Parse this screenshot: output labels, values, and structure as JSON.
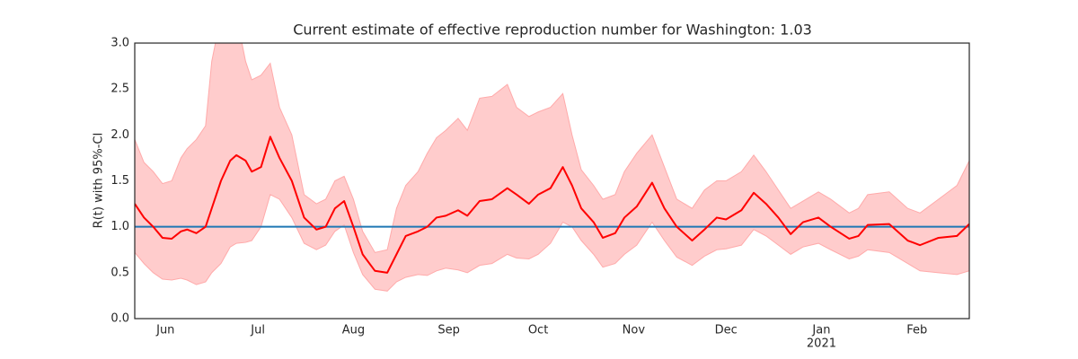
{
  "chart_data": {
    "type": "band-line",
    "title": "Current estimate of effective reproduction number for Washington: 1.03",
    "ylabel": "R(t) with 95%-CI",
    "x": [
      0,
      3,
      6,
      9,
      12,
      15,
      17,
      20,
      23,
      25,
      28,
      31,
      33,
      36,
      38,
      41,
      44,
      47,
      51,
      55,
      59,
      62,
      65,
      68,
      71,
      74,
      78,
      82,
      85,
      88,
      92,
      95,
      98,
      101,
      105,
      108,
      112,
      116,
      121,
      124,
      128,
      131,
      135,
      139,
      142,
      145,
      149,
      152,
      156,
      159,
      163,
      168,
      172,
      176,
      181,
      185,
      189,
      192,
      197,
      201,
      205,
      209,
      213,
      217,
      222,
      226,
      232,
      235,
      238,
      245,
      251,
      255,
      261,
      267,
      271
    ],
    "line": {
      "color": "#ff0000",
      "values": [
        1.25,
        1.1,
        1.0,
        0.88,
        0.87,
        0.95,
        0.97,
        0.93,
        1.0,
        1.2,
        1.5,
        1.72,
        1.78,
        1.72,
        1.6,
        1.65,
        1.98,
        1.75,
        1.5,
        1.1,
        0.97,
        1.0,
        1.2,
        1.28,
        1.0,
        0.7,
        0.52,
        0.5,
        0.7,
        0.9,
        0.95,
        1.0,
        1.1,
        1.12,
        1.18,
        1.12,
        1.28,
        1.3,
        1.42,
        1.35,
        1.25,
        1.35,
        1.42,
        1.65,
        1.45,
        1.2,
        1.05,
        0.88,
        0.93,
        1.1,
        1.22,
        1.48,
        1.2,
        1.0,
        0.85,
        0.97,
        1.1,
        1.08,
        1.18,
        1.37,
        1.25,
        1.1,
        0.92,
        1.05,
        1.1,
        1.0,
        0.87,
        0.9,
        1.02,
        1.03,
        0.85,
        0.8,
        0.88,
        0.9,
        1.03
      ]
    },
    "band": {
      "color": "#ffcccc",
      "edge_color": "#ffaaaa",
      "upper": [
        1.95,
        1.7,
        1.6,
        1.47,
        1.5,
        1.75,
        1.85,
        1.95,
        2.1,
        2.8,
        3.3,
        3.5,
        3.3,
        2.8,
        2.6,
        2.65,
        2.78,
        2.3,
        2.0,
        1.35,
        1.25,
        1.3,
        1.5,
        1.55,
        1.3,
        0.95,
        0.72,
        0.75,
        1.2,
        1.45,
        1.6,
        1.8,
        1.97,
        2.05,
        2.18,
        2.05,
        2.4,
        2.42,
        2.55,
        2.3,
        2.2,
        2.25,
        2.3,
        2.45,
        2.0,
        1.62,
        1.45,
        1.3,
        1.35,
        1.6,
        1.8,
        2.0,
        1.65,
        1.3,
        1.2,
        1.4,
        1.5,
        1.5,
        1.6,
        1.78,
        1.6,
        1.4,
        1.2,
        1.28,
        1.38,
        1.3,
        1.15,
        1.2,
        1.35,
        1.38,
        1.2,
        1.15,
        1.3,
        1.45,
        1.72
      ],
      "lower": [
        0.72,
        0.6,
        0.5,
        0.43,
        0.42,
        0.44,
        0.42,
        0.37,
        0.4,
        0.5,
        0.6,
        0.78,
        0.82,
        0.83,
        0.85,
        1.0,
        1.35,
        1.3,
        1.1,
        0.82,
        0.75,
        0.8,
        0.95,
        1.02,
        0.72,
        0.48,
        0.32,
        0.3,
        0.4,
        0.45,
        0.48,
        0.47,
        0.52,
        0.55,
        0.53,
        0.5,
        0.58,
        0.6,
        0.7,
        0.66,
        0.65,
        0.7,
        0.82,
        1.05,
        1.0,
        0.85,
        0.7,
        0.56,
        0.6,
        0.7,
        0.8,
        1.05,
        0.85,
        0.67,
        0.58,
        0.68,
        0.75,
        0.76,
        0.8,
        0.97,
        0.9,
        0.8,
        0.7,
        0.78,
        0.82,
        0.75,
        0.65,
        0.68,
        0.75,
        0.72,
        0.6,
        0.52,
        0.5,
        0.48,
        0.52
      ]
    },
    "hline": {
      "value": 1,
      "color": "#1f77b4"
    },
    "xlim": [
      0,
      271
    ],
    "xticks": [
      {
        "value": 10,
        "label": "Jun"
      },
      {
        "value": 40,
        "label": "Jul"
      },
      {
        "value": 71,
        "label": "Aug"
      },
      {
        "value": 102,
        "label": "Sep"
      },
      {
        "value": 131,
        "label": "Oct"
      },
      {
        "value": 162,
        "label": "Nov"
      },
      {
        "value": 192,
        "label": "Dec"
      },
      {
        "value": 223,
        "label": "Jan"
      },
      {
        "value": 254,
        "label": "Feb"
      }
    ],
    "xtick_sublabels": [
      {
        "value": 223,
        "label": "2021"
      }
    ],
    "ylim": [
      0,
      3
    ],
    "yticks": [
      {
        "value": 0,
        "label": "0.0"
      },
      0.5,
      {
        "value": 1,
        "label": "1.0"
      },
      1.5,
      {
        "value": 2,
        "label": "2.0"
      },
      2.5,
      {
        "value": 3,
        "label": "3.0"
      }
    ]
  }
}
